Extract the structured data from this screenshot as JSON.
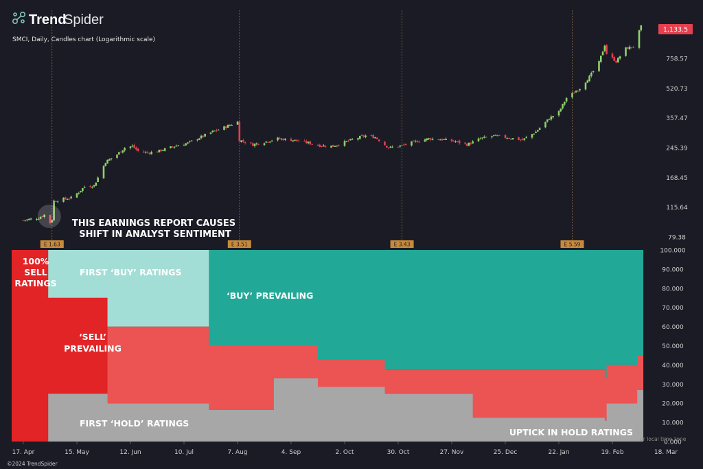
{
  "brand": {
    "name_bold": "Trend",
    "name_light": "Spider"
  },
  "chart_info": "SMCI, Daily, Candles chart (Logarithmic scale)",
  "price_badge": "1,133.5",
  "footer": "©2024 TrendSpider",
  "timezone_note": "ur local time zone",
  "colors": {
    "background": "#1b1b26",
    "up": "#8fd16a",
    "down": "#e4404f",
    "buy": "#22a896",
    "first_buy": "#a3ded6",
    "sell": "#e22426",
    "sell_light": "#ec5454",
    "hold": "#a7a7a7",
    "earnings": "#c88a3a"
  },
  "chart_data": [
    {
      "type": "candlestick",
      "scale": "log",
      "title": "SMCI, Daily, Candles chart (Logarithmic scale)",
      "y_ticks": [
        "758.57",
        "520.73",
        "357.47",
        "245.39",
        "168.45",
        "115.64",
        "79.38"
      ],
      "y_tick_values": [
        758.57,
        520.73,
        357.47,
        245.39,
        168.45,
        115.64,
        79.38
      ],
      "ylim": [
        76,
        1300
      ],
      "last_price": 1133.5,
      "earnings_markers": [
        {
          "label": "E 1.63",
          "date": "2023-05-02"
        },
        {
          "label": "E 3.51",
          "date": "2023-08-08"
        },
        {
          "label": "E 3.43",
          "date": "2023-11-01"
        },
        {
          "label": "E 5.59",
          "date": "2024-01-29"
        }
      ],
      "close_path": [
        [
          "2023-04-17",
          98
        ],
        [
          "2023-04-25",
          101
        ],
        [
          "2023-04-28",
          105
        ],
        [
          "2023-05-01",
          95
        ],
        [
          "2023-05-02",
          99
        ],
        [
          "2023-05-03",
          125
        ],
        [
          "2023-05-08",
          128
        ],
        [
          "2023-05-12",
          130
        ],
        [
          "2023-05-16",
          140
        ],
        [
          "2023-05-19",
          150
        ],
        [
          "2023-05-24",
          152
        ],
        [
          "2023-05-30",
          205
        ],
        [
          "2023-06-05",
          225
        ],
        [
          "2023-06-09",
          245
        ],
        [
          "2023-06-13",
          250
        ],
        [
          "2023-06-16",
          235
        ],
        [
          "2023-06-21",
          230
        ],
        [
          "2023-06-27",
          235
        ],
        [
          "2023-07-05",
          250
        ],
        [
          "2023-07-12",
          260
        ],
        [
          "2023-07-17",
          275
        ],
        [
          "2023-07-25",
          300
        ],
        [
          "2023-08-01",
          320
        ],
        [
          "2023-08-07",
          340
        ],
        [
          "2023-08-08",
          270
        ],
        [
          "2023-08-15",
          255
        ],
        [
          "2023-08-22",
          265
        ],
        [
          "2023-08-28",
          275
        ],
        [
          "2023-09-05",
          270
        ],
        [
          "2023-09-12",
          262
        ],
        [
          "2023-09-19",
          252
        ],
        [
          "2023-09-26",
          250
        ],
        [
          "2023-10-03",
          265
        ],
        [
          "2023-10-10",
          280
        ],
        [
          "2023-10-13",
          285
        ],
        [
          "2023-10-18",
          280
        ],
        [
          "2023-10-25",
          245
        ],
        [
          "2023-11-01",
          252
        ],
        [
          "2023-11-08",
          265
        ],
        [
          "2023-11-15",
          275
        ],
        [
          "2023-11-22",
          272
        ],
        [
          "2023-11-29",
          265
        ],
        [
          "2023-12-05",
          255
        ],
        [
          "2023-12-12",
          275
        ],
        [
          "2023-12-19",
          285
        ],
        [
          "2023-12-27",
          278
        ],
        [
          "2024-01-03",
          270
        ],
        [
          "2024-01-10",
          300
        ],
        [
          "2024-01-17",
          355
        ],
        [
          "2024-01-22",
          385
        ],
        [
          "2024-01-26",
          460
        ],
        [
          "2024-02-02",
          520
        ],
        [
          "2024-02-07",
          600
        ],
        [
          "2024-02-12",
          720
        ],
        [
          "2024-02-15",
          900
        ],
        [
          "2024-02-16",
          805
        ],
        [
          "2024-02-21",
          730
        ],
        [
          "2024-02-26",
          860
        ],
        [
          "2024-03-01",
          880
        ],
        [
          "2024-03-05",
          1133.5
        ]
      ]
    },
    {
      "type": "area",
      "stacked": true,
      "ylim": [
        0,
        100
      ],
      "y_ticks": [
        "100.000",
        "90.000",
        "80.000",
        "70.000",
        "60.000",
        "50.000",
        "40.000",
        "30.000",
        "20.000",
        "10.000",
        "0.000"
      ],
      "x_ticks": [
        "17. Apr",
        "15. May",
        "12. Jun",
        "10. Jul",
        "7. Aug",
        "4. Sep",
        "2. Oct",
        "30. Oct",
        "27. Nov",
        "25. Dec",
        "22. Jan",
        "19. Feb",
        "18. Mar"
      ],
      "series_order": [
        "hold",
        "sell",
        "buy"
      ],
      "segments": [
        {
          "start": "2023-04-17",
          "end": "2023-04-30",
          "hold": 0,
          "sell": 100,
          "buy": 0
        },
        {
          "start": "2023-04-30",
          "end": "2023-05-31",
          "hold": 25,
          "sell": 50,
          "buy": 25
        },
        {
          "start": "2023-05-31",
          "end": "2023-07-23",
          "hold": 20,
          "sell": 40,
          "buy": 40
        },
        {
          "start": "2023-07-23",
          "end": "2023-08-26",
          "hold": 16.5,
          "sell": 33.5,
          "buy": 50
        },
        {
          "start": "2023-08-26",
          "end": "2023-09-18",
          "hold": 33,
          "sell": 17,
          "buy": 50
        },
        {
          "start": "2023-09-18",
          "end": "2023-10-23",
          "hold": 28.5,
          "sell": 14.5,
          "buy": 57
        },
        {
          "start": "2023-10-23",
          "end": "2023-12-08",
          "hold": 25,
          "sell": 12.5,
          "buy": 62.5
        },
        {
          "start": "2023-12-08",
          "end": "2024-02-15",
          "hold": 12.5,
          "sell": 25,
          "buy": 62.5
        },
        {
          "start": "2024-02-15",
          "end": "2024-02-16",
          "hold": 11,
          "sell": 22,
          "buy": 67
        },
        {
          "start": "2024-02-16",
          "end": "2024-03-03",
          "hold": 20,
          "sell": 20,
          "buy": 60
        },
        {
          "start": "2024-03-03",
          "end": "2024-03-06",
          "hold": 27,
          "sell": 18,
          "buy": 55
        }
      ]
    }
  ],
  "annotations": {
    "earnings_line1": "THIS EARNINGS REPORT CAUSES",
    "earnings_line2": "SHIFT IN ANALYST SENTIMENT",
    "sell100_line1": "100%",
    "sell100_line2": "SELL",
    "sell100_line3": "RATINGS",
    "first_buy": "FIRST ‘BUY’ RATINGS",
    "buy_prevailing": "‘BUY’ PREVAILING",
    "sell_prevailing_line1": "‘SELL’",
    "sell_prevailing_line2": "PREVAILING",
    "first_hold": "FIRST ‘HOLD’ RATINGS",
    "uptick_hold": "UPTICK IN HOLD RATINGS"
  }
}
